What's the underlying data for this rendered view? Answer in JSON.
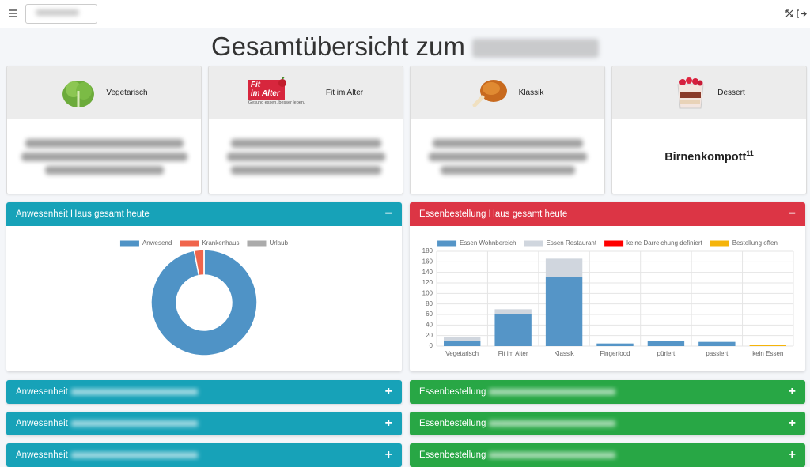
{
  "title": "Gesamtübersicht zum",
  "menu": [
    {
      "name": "Vegetarisch"
    },
    {
      "name": "Fit im Alter",
      "logo_lines": [
        "Fit",
        "im Alter"
      ],
      "slogan": "Gesund essen, besser leben."
    },
    {
      "name": "Klassik"
    },
    {
      "name": "Dessert",
      "dish": "Birnenkompott",
      "dish_note": "11"
    }
  ],
  "panels": [
    {
      "title": "Anwesenheit Haus gesamt heute",
      "toggle": "−"
    },
    {
      "title": "Essenbestellung Haus gesamt heute",
      "toggle": "−"
    }
  ],
  "collapsed": [
    {
      "title": "Anwesenheit",
      "toggle": "+"
    },
    {
      "title": "Essenbestellung",
      "toggle": "+"
    },
    {
      "title": "Anwesenheit",
      "toggle": "+"
    },
    {
      "title": "Essenbestellung",
      "toggle": "+"
    },
    {
      "title": "Anwesenheit",
      "toggle": "+"
    },
    {
      "title": "Essenbestellung",
      "toggle": "+"
    }
  ],
  "chart_data": [
    {
      "type": "doughnut",
      "categories": [
        "Anwesend",
        "Krankenhaus",
        "Urlaub"
      ],
      "values": [
        97,
        3,
        0
      ],
      "colors": [
        "#4f93c6",
        "#f0654c",
        "#ababab"
      ],
      "legend": "top"
    },
    {
      "type": "bar",
      "stacked": true,
      "categories": [
        "Vegetarisch",
        "Fit im Alter",
        "Klassik",
        "Fingerfood",
        "püriert",
        "passiert",
        "kein Essen"
      ],
      "series": [
        {
          "name": "Essen Wohnbereich",
          "color": "#5595c7",
          "values": [
            10,
            60,
            132,
            5,
            9,
            8,
            0
          ]
        },
        {
          "name": "Essen Restaurant",
          "color": "#d0d6de",
          "values": [
            7,
            10,
            34,
            0,
            0,
            0,
            0
          ]
        },
        {
          "name": "keine Darreichung definiert",
          "color": "#ff0000",
          "values": [
            0,
            0,
            0,
            0,
            0,
            0,
            0
          ]
        },
        {
          "name": "Bestellung offen",
          "color": "#f5b40a",
          "values": [
            0,
            0,
            0,
            0,
            0,
            0,
            2
          ]
        }
      ],
      "ylim": [
        0,
        180
      ],
      "yticks": [
        0,
        20,
        40,
        60,
        80,
        100,
        120,
        140,
        160,
        180
      ],
      "grid": true,
      "legend": "top"
    }
  ]
}
